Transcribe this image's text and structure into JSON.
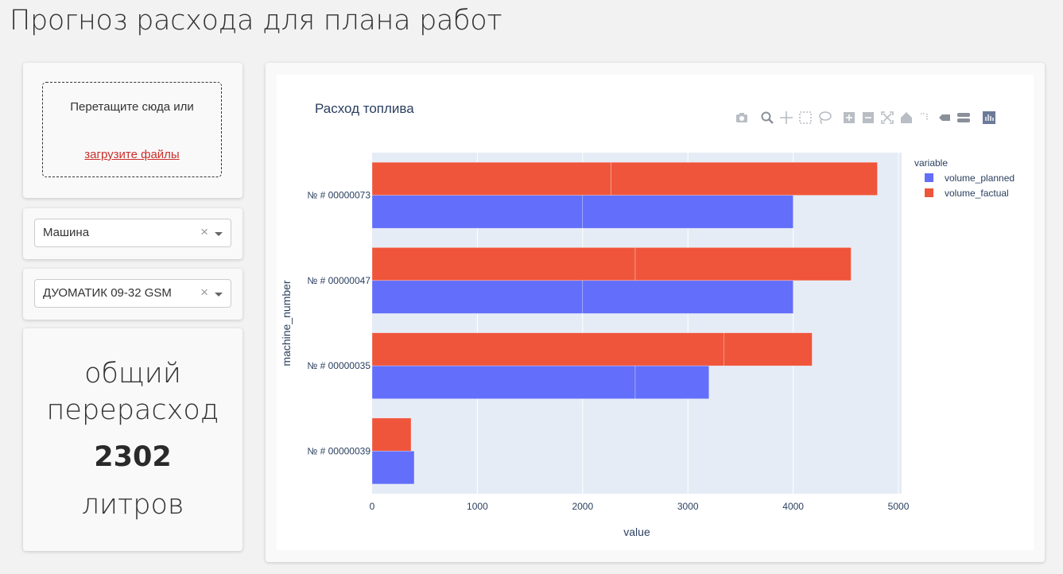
{
  "page": {
    "title": "Прогноз расхода для плана работ"
  },
  "upload": {
    "drop_text": "Перетащите сюда или",
    "link_text": "загрузите файлы"
  },
  "filters": [
    {
      "value": "Машина",
      "clear": "×"
    },
    {
      "value": "ДУОМАТИК 09-32 GSM",
      "clear": "×"
    }
  ],
  "summary": {
    "label": "общий перерасход",
    "value": "2302",
    "unit": "литров"
  },
  "modebar_icons": [
    "camera-icon",
    "zoom-icon",
    "pan-icon",
    "box-select-icon",
    "lasso-icon",
    "zoom-in-icon",
    "zoom-out-icon",
    "autoscale-icon",
    "home-icon",
    "spike-lines-icon",
    "hover-closest-icon",
    "hover-compare-icon",
    "plotly-logo-icon"
  ],
  "chart_data": {
    "type": "bar",
    "orientation": "horizontal",
    "barmode": "group",
    "title": "Расход топлива",
    "xlabel": "value",
    "ylabel": "machine_number",
    "xlim": [
      0,
      5000
    ],
    "xticks": [
      "0",
      "1000",
      "2000",
      "3000",
      "4000",
      "5000"
    ],
    "categories": [
      "№ # 00000073",
      "№ # 00000047",
      "№ # 00000035",
      "№ # 00000039"
    ],
    "legend_title": "variable",
    "legend_position": "top-right",
    "series": [
      {
        "name": "volume_planned",
        "color": "#636efa",
        "values": [
          4000,
          4000,
          3200,
          400
        ],
        "segments": [
          [
            2000,
            2000
          ],
          [
            2000,
            2000
          ],
          [
            2500,
            700
          ],
          [
            400
          ]
        ]
      },
      {
        "name": "volume_factual",
        "color": "#ef553b",
        "values": [
          4800,
          4550,
          4180,
          370
        ],
        "segments": [
          [
            2270,
            2530
          ],
          [
            2500,
            2050
          ],
          [
            3340,
            840
          ],
          [
            370
          ]
        ]
      }
    ],
    "plot_bgcolor": "#e5ecf6",
    "grid": true
  }
}
